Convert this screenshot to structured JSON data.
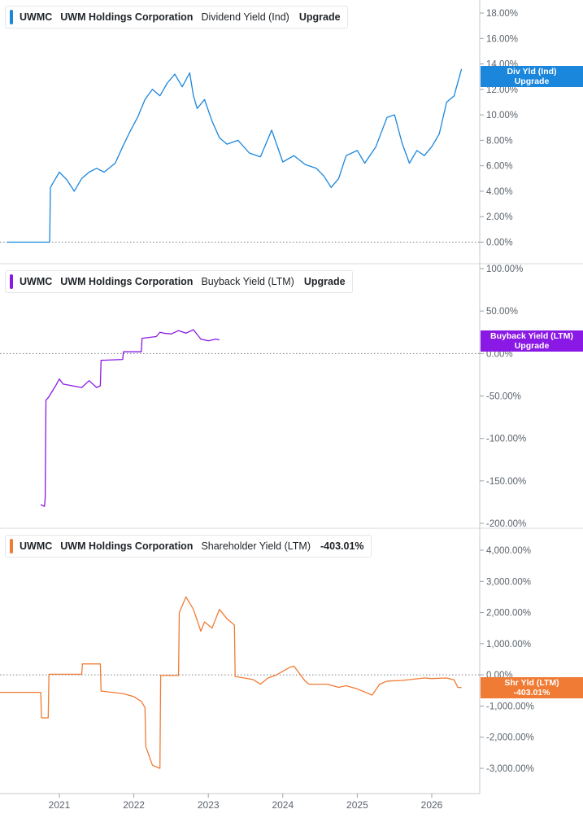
{
  "colors": {
    "panel1": "#1a86dc",
    "panel2": "#8a19e5",
    "panel3": "#f07b35",
    "grid": "#d5d8dc",
    "axis_text": "#5b636b",
    "zero_line": "#7a7f86"
  },
  "x_axis": {
    "ticks": [
      "2021",
      "2022",
      "2023",
      "2024",
      "2025",
      "2026"
    ]
  },
  "panels": [
    {
      "ticker": "UWMC",
      "company": "UWM Holdings Corporation",
      "metric": "Dividend Yield (Ind)",
      "tail": "Upgrade",
      "tag_line1": "Div Yld (Ind)",
      "tag_line2": "Upgrade",
      "y_ticks": [
        "18.00%",
        "16.00%",
        "14.00%",
        "12.00%",
        "10.00%",
        "8.00%",
        "6.00%",
        "4.00%",
        "2.00%",
        "0.00%"
      ]
    },
    {
      "ticker": "UWMC",
      "company": "UWM Holdings Corporation",
      "metric": "Buyback Yield (LTM)",
      "tail": "Upgrade",
      "tag_line1": "Buyback Yield (LTM)",
      "tag_line2": "Upgrade",
      "y_ticks": [
        "100.00%",
        "50.00%",
        "0.00%",
        "-50.00%",
        "-100.00%",
        "-150.00%",
        "-200.00%"
      ]
    },
    {
      "ticker": "UWMC",
      "company": "UWM Holdings Corporation",
      "metric": "Shareholder Yield (LTM)",
      "tail": "-403.01%",
      "tag_line1": "Shr Yld (LTM)",
      "tag_line2": "-403.01%",
      "y_ticks": [
        "4,000.00%",
        "3,000.00%",
        "2,000.00%",
        "1,000.00%",
        "0.00%",
        "-1,000.00%",
        "-2,000.00%",
        "-3,000.00%"
      ]
    }
  ],
  "chart_data": [
    {
      "type": "line",
      "title": "UWMC UWM Holdings Corporation Dividend Yield (Ind)",
      "ylim": [
        0,
        18
      ],
      "y_unit": "%",
      "series": [
        {
          "name": "Dividend Yield (Ind)",
          "x": [
            2020.3,
            2020.8,
            2020.87,
            2020.88,
            2020.95,
            2021.0,
            2021.1,
            2021.2,
            2021.3,
            2021.4,
            2021.5,
            2021.6,
            2021.75,
            2021.85,
            2021.95,
            2022.05,
            2022.15,
            2022.25,
            2022.35,
            2022.45,
            2022.55,
            2022.65,
            2022.75,
            2022.8,
            2022.85,
            2022.95,
            2023.05,
            2023.15,
            2023.25,
            2023.4,
            2023.55,
            2023.7,
            2023.85,
            2024.0,
            2024.15,
            2024.3,
            2024.45,
            2024.55,
            2024.65,
            2024.75,
            2024.85,
            2025.0,
            2025.1,
            2025.25,
            2025.4,
            2025.5,
            2025.6,
            2025.7,
            2025.8,
            2025.9,
            2026.0,
            2026.1,
            2026.2,
            2026.3,
            2026.4
          ],
          "values": [
            0.0,
            0.0,
            0.0,
            4.3,
            5.0,
            5.5,
            4.9,
            4.0,
            5.0,
            5.5,
            5.8,
            5.5,
            6.2,
            7.5,
            8.7,
            9.8,
            11.2,
            12.0,
            11.5,
            12.5,
            13.2,
            12.2,
            13.3,
            11.5,
            10.5,
            11.2,
            9.5,
            8.2,
            7.7,
            8.0,
            7.0,
            6.7,
            8.8,
            6.3,
            6.8,
            6.1,
            5.8,
            5.2,
            4.3,
            5.0,
            6.8,
            7.2,
            6.2,
            7.5,
            9.8,
            10.0,
            7.8,
            6.2,
            7.2,
            6.8,
            7.5,
            8.5,
            11.0,
            11.5,
            13.6
          ]
        }
      ]
    },
    {
      "type": "line",
      "title": "UWMC UWM Holdings Corporation Buyback Yield (LTM)",
      "ylim": [
        -200,
        100
      ],
      "y_unit": "%",
      "series": [
        {
          "name": "Buyback Yield (LTM)",
          "x": [
            2020.75,
            2020.8,
            2020.81,
            2020.82,
            2020.85,
            2020.95,
            2021.0,
            2021.05,
            2021.3,
            2021.4,
            2021.5,
            2021.55,
            2021.56,
            2021.85,
            2021.86,
            2022.1,
            2022.11,
            2022.3,
            2022.35,
            2022.4,
            2022.5,
            2022.6,
            2022.7,
            2022.8,
            2022.9,
            2023.0,
            2023.1,
            2023.15
          ],
          "values": [
            -178,
            -180,
            -170,
            -55,
            -52,
            -38,
            -30,
            -36,
            -40,
            -32,
            -40,
            -38,
            -8,
            -7,
            2,
            2,
            18,
            20,
            25,
            24,
            23,
            27,
            24,
            28,
            17,
            15,
            17,
            16
          ]
        }
      ]
    },
    {
      "type": "line",
      "title": "UWMC UWM Holdings Corporation Shareholder Yield (LTM)",
      "ylim": [
        -3200,
        4000
      ],
      "y_unit": "%",
      "series": [
        {
          "name": "Shareholder Yield (LTM)",
          "x": [
            2019.9,
            2020.75,
            2020.76,
            2020.85,
            2020.86,
            2021.3,
            2021.31,
            2021.55,
            2021.56,
            2021.85,
            2022.0,
            2022.1,
            2022.15,
            2022.16,
            2022.25,
            2022.35,
            2022.36,
            2022.6,
            2022.61,
            2022.7,
            2022.8,
            2022.9,
            2022.95,
            2023.05,
            2023.15,
            2023.25,
            2023.35,
            2023.36,
            2023.6,
            2023.7,
            2023.8,
            2023.9,
            2024.1,
            2024.15,
            2024.3,
            2024.35,
            2024.6,
            2024.75,
            2024.85,
            2025.0,
            2025.05,
            2025.2,
            2025.3,
            2025.4,
            2025.6,
            2025.9,
            2026.0,
            2026.2,
            2026.3,
            2026.35,
            2026.4
          ],
          "values": [
            -560,
            -560,
            -1380,
            -1380,
            20,
            20,
            350,
            350,
            -520,
            -600,
            -700,
            -850,
            -1050,
            -2300,
            -2900,
            -3000,
            -20,
            -20,
            2000,
            2500,
            2100,
            1400,
            1700,
            1500,
            2100,
            1800,
            1600,
            -50,
            -150,
            -300,
            -100,
            -20,
            250,
            280,
            -200,
            -300,
            -300,
            -400,
            -350,
            -450,
            -500,
            -650,
            -300,
            -200,
            -180,
            -100,
            -120,
            -100,
            -160,
            -403,
            -403
          ]
        }
      ]
    }
  ]
}
